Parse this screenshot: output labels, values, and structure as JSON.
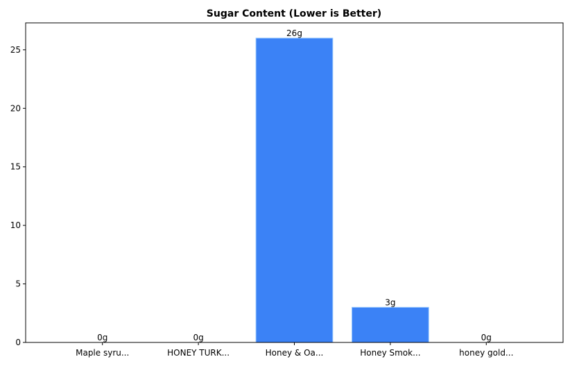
{
  "chart_data": {
    "type": "bar",
    "title": "Sugar Content (Lower is Better)",
    "xlabel": "",
    "ylabel": "",
    "categories": [
      "Maple syru...",
      "HONEY TURK...",
      "Honey & Oa...",
      "Honey Smok...",
      "honey gold..."
    ],
    "values": [
      0,
      0,
      26,
      3,
      0
    ],
    "data_labels": [
      "0g",
      "0g",
      "26g",
      "3g",
      "0g"
    ],
    "ylim": [
      0,
      27.3
    ],
    "yticks": [
      0,
      5,
      10,
      15,
      20,
      25
    ],
    "ytick_labels": [
      "0",
      "5",
      "10",
      "15",
      "20",
      "25"
    ],
    "grid": false,
    "bar_color": "#3b82f6",
    "bar_edge_color": "#93c5fd"
  }
}
